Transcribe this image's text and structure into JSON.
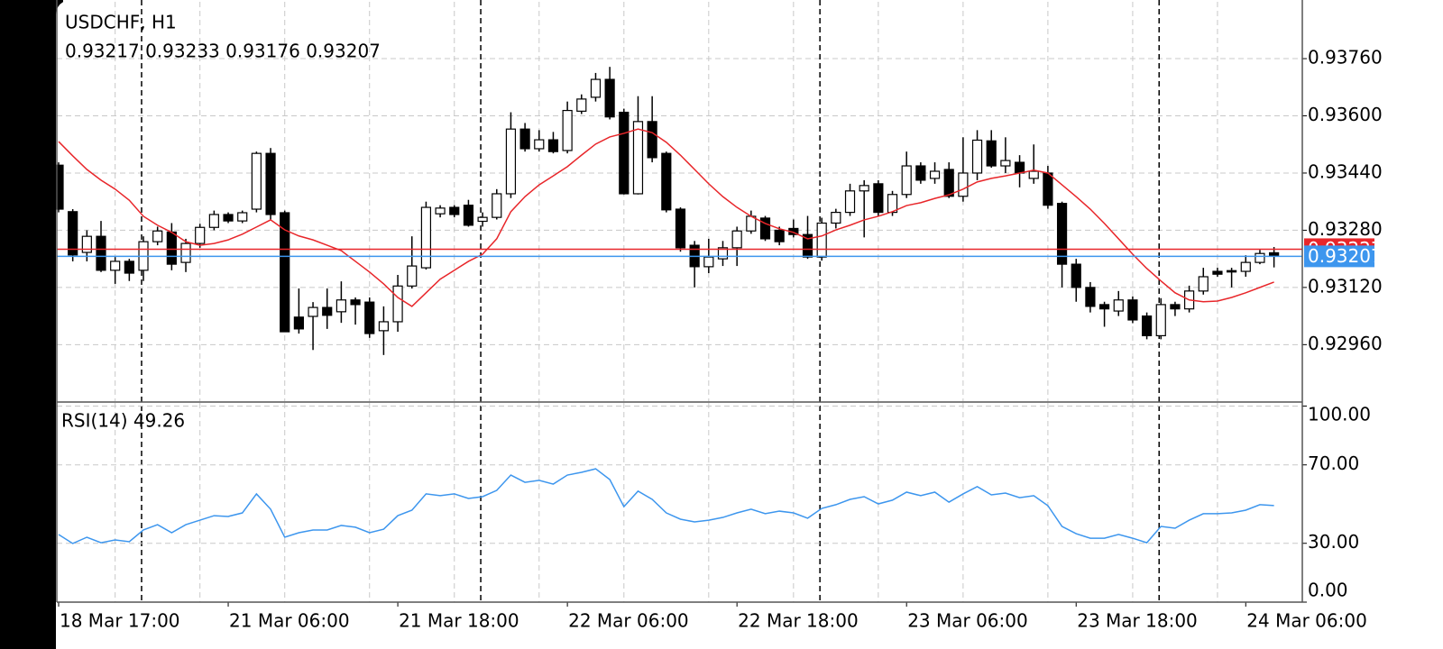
{
  "chart_data": [
    {
      "type": "candlestick",
      "title": "USDCHF, H1",
      "subtitle": "0.93217 0.93233 0.93176 0.93207",
      "categories": [
        "18 Mar 17:00",
        null,
        null,
        null,
        null,
        null,
        null,
        null,
        null,
        null,
        null,
        null,
        "21 Mar 06:00",
        null,
        null,
        null,
        null,
        null,
        null,
        null,
        null,
        null,
        null,
        null,
        "21 Mar 18:00",
        null,
        null,
        null,
        null,
        null,
        null,
        null,
        null,
        null,
        null,
        null,
        "22 Mar 06:00",
        null,
        null,
        null,
        null,
        null,
        null,
        null,
        null,
        null,
        null,
        null,
        "22 Mar 18:00",
        null,
        null,
        null,
        null,
        null,
        null,
        null,
        null,
        null,
        null,
        null,
        "23 Mar 06:00",
        null,
        null,
        null,
        null,
        null,
        null,
        null,
        null,
        null,
        null,
        null,
        "23 Mar 18:00",
        null,
        null,
        null,
        null,
        null,
        null,
        null,
        null,
        null,
        null,
        null,
        "24 Mar 06:00",
        null,
        null
      ],
      "open": [
        0.93462,
        0.93332,
        0.93218,
        0.93263,
        0.93168,
        0.93193,
        0.93168,
        0.93248,
        0.93275,
        0.9319,
        0.93243,
        0.93288,
        0.93324,
        0.93306,
        0.93339,
        0.93495,
        0.93329,
        0.93037,
        0.93039,
        0.93064,
        0.93052,
        0.93085,
        0.93079,
        0.92999,
        0.93024,
        0.93124,
        0.93175,
        0.93326,
        0.93344,
        0.9335,
        0.93305,
        0.93316,
        0.93382,
        0.93563,
        0.93508,
        0.93533,
        0.93503,
        0.93613,
        0.93652,
        0.93702,
        0.9361,
        0.93382,
        0.93584,
        0.93495,
        0.93339,
        0.93238,
        0.93178,
        0.932,
        0.93231,
        0.93278,
        0.93314,
        0.9328,
        0.93285,
        0.93268,
        0.93205,
        0.933,
        0.9333,
        0.9339,
        0.9341,
        0.9333,
        0.9338,
        0.9346,
        0.93425,
        0.9345,
        0.93375,
        0.9344,
        0.9353,
        0.9346,
        0.9347,
        0.93425,
        0.9344,
        0.93355,
        0.93185,
        0.9312,
        0.93072,
        0.93054,
        0.93085,
        0.9304,
        0.92985,
        0.93072,
        0.9306,
        0.9311,
        0.93165,
        0.93167,
        0.93165,
        0.9319,
        0.93217
      ],
      "high": [
        0.9347,
        0.93339,
        0.9328,
        0.93306,
        0.93205,
        0.932,
        0.93263,
        0.9329,
        0.933,
        0.93256,
        0.93298,
        0.93335,
        0.9333,
        0.93335,
        0.935,
        0.9351,
        0.93335,
        0.93117,
        0.93079,
        0.93117,
        0.93137,
        0.93092,
        0.93092,
        0.93067,
        0.93155,
        0.93263,
        0.9336,
        0.9335,
        0.9335,
        0.93365,
        0.9333,
        0.93395,
        0.9361,
        0.9358,
        0.9356,
        0.93555,
        0.9364,
        0.9366,
        0.9372,
        0.93737,
        0.9362,
        0.93655,
        0.93655,
        0.935,
        0.93344,
        0.9325,
        0.93256,
        0.9325,
        0.9329,
        0.93335,
        0.9332,
        0.9329,
        0.9331,
        0.9332,
        0.93315,
        0.9334,
        0.9341,
        0.9342,
        0.9342,
        0.9339,
        0.935,
        0.9347,
        0.9347,
        0.9347,
        0.9354,
        0.9356,
        0.9356,
        0.9354,
        0.9349,
        0.9352,
        0.9346,
        0.9336,
        0.932,
        0.93135,
        0.9308,
        0.9311,
        0.93095,
        0.9305,
        0.9309,
        0.9308,
        0.93125,
        0.93175,
        0.93175,
        0.93175,
        0.9321,
        0.93225,
        0.93233
      ],
      "low": [
        0.9333,
        0.93193,
        0.93193,
        0.93163,
        0.9313,
        0.93138,
        0.93138,
        0.93238,
        0.93168,
        0.93163,
        0.93231,
        0.9328,
        0.933,
        0.933,
        0.9333,
        0.9331,
        0.92996,
        0.92991,
        0.92945,
        0.93004,
        0.93021,
        0.93016,
        0.92979,
        0.92931,
        0.92996,
        0.93117,
        0.9317,
        0.93316,
        0.93316,
        0.9329,
        0.9329,
        0.9331,
        0.9337,
        0.935,
        0.935,
        0.93495,
        0.93495,
        0.93605,
        0.9364,
        0.9359,
        0.9338,
        0.9338,
        0.9347,
        0.9333,
        0.9322,
        0.9312,
        0.9316,
        0.9318,
        0.9318,
        0.9327,
        0.9325,
        0.93238,
        0.9326,
        0.932,
        0.93195,
        0.93285,
        0.9332,
        0.9326,
        0.9332,
        0.9332,
        0.9337,
        0.9341,
        0.9341,
        0.9337,
        0.9336,
        0.9342,
        0.93455,
        0.9344,
        0.934,
        0.9341,
        0.9334,
        0.9312,
        0.9308,
        0.9305,
        0.9301,
        0.9304,
        0.9302,
        0.92975,
        0.92975,
        0.9304,
        0.9305,
        0.931,
        0.9315,
        0.9312,
        0.9315,
        0.93185,
        0.93176
      ],
      "close": [
        0.93339,
        0.93211,
        0.93263,
        0.93168,
        0.93193,
        0.9316,
        0.93248,
        0.93278,
        0.93185,
        0.93243,
        0.93288,
        0.93324,
        0.93306,
        0.93329,
        0.93495,
        0.93324,
        0.92996,
        0.93004,
        0.93064,
        0.93042,
        0.93085,
        0.93072,
        0.92991,
        0.93024,
        0.93124,
        0.9318,
        0.93344,
        0.93342,
        0.93324,
        0.93294,
        0.93316,
        0.93382,
        0.93563,
        0.93508,
        0.93533,
        0.935,
        0.93615,
        0.93647,
        0.93702,
        0.93597,
        0.93382,
        0.93584,
        0.93483,
        0.93337,
        0.93231,
        0.93178,
        0.93205,
        0.93231,
        0.93278,
        0.93319,
        0.93256,
        0.93248,
        0.93268,
        0.93205,
        0.933,
        0.9333,
        0.9339,
        0.93405,
        0.9333,
        0.9338,
        0.9346,
        0.9342,
        0.93445,
        0.93375,
        0.9344,
        0.93532,
        0.9346,
        0.93475,
        0.9344,
        0.93445,
        0.9335,
        0.93185,
        0.9312,
        0.93067,
        0.9306,
        0.93085,
        0.93029,
        0.92985,
        0.93072,
        0.9306,
        0.9311,
        0.9315,
        0.93157,
        0.93164,
        0.9319,
        0.93215,
        0.93207
      ],
      "overlay_color": "#e8262a",
      "overlay_values": [
        0.93528,
        0.93488,
        0.9345,
        0.9342,
        0.93395,
        0.93364,
        0.93319,
        0.93294,
        0.93274,
        0.93248,
        0.93238,
        0.93243,
        0.93253,
        0.93269,
        0.93289,
        0.93309,
        0.93281,
        0.93264,
        0.93253,
        0.93238,
        0.93223,
        0.93193,
        0.93163,
        0.9313,
        0.93092,
        0.93067,
        0.93105,
        0.93143,
        0.93168,
        0.93193,
        0.93213,
        0.93256,
        0.93332,
        0.93374,
        0.93407,
        0.93432,
        0.93458,
        0.9349,
        0.93521,
        0.93541,
        0.93551,
        0.93563,
        0.93553,
        0.93526,
        0.9349,
        0.9345,
        0.9341,
        0.93374,
        0.93344,
        0.93319,
        0.93299,
        0.93284,
        0.93274,
        0.93256,
        0.93264,
        0.93281,
        0.93294,
        0.93309,
        0.93319,
        0.93332,
        0.93349,
        0.93357,
        0.93369,
        0.93379,
        0.93395,
        0.93415,
        0.93425,
        0.93432,
        0.9344,
        0.93448,
        0.9344,
        0.93407,
        0.93374,
        0.93339,
        0.93299,
        0.93256,
        0.93213,
        0.93173,
        0.93138,
        0.93105,
        0.93085,
        0.9308,
        0.93082,
        0.93092,
        0.93105,
        0.9312,
        0.93135
      ],
      "price_lines": [
        {
          "value": 0.93227,
          "color": "#e8262a"
        },
        {
          "value": 0.93207,
          "color": "#3d96ee"
        }
      ],
      "ylim": [
        0.92802,
        0.93919
      ],
      "yticks": [
        {
          "value": 0.9296,
          "label": "0.92960"
        },
        {
          "value": 0.9312,
          "label": "0.93120"
        },
        {
          "value": 0.9328,
          "label": "0.93280"
        },
        {
          "value": 0.9344,
          "label": "0.93440"
        },
        {
          "value": 0.936,
          "label": "0.93600"
        },
        {
          "value": 0.9376,
          "label": "0.93760"
        }
      ],
      "grid": true
    },
    {
      "type": "line",
      "title": "RSI(14) 49.26",
      "color": "#3d96ee",
      "values": [
        34.5,
        29.9,
        33.1,
        30.3,
        31.7,
        30.8,
        36.8,
        39.5,
        35.4,
        39.5,
        41.8,
        44.1,
        43.7,
        45.5,
        55.2,
        47.4,
        33.1,
        35.4,
        36.8,
        36.8,
        39.1,
        38.2,
        35.4,
        37.2,
        44.1,
        46.9,
        55.2,
        54.3,
        55.2,
        52.9,
        53.8,
        57.0,
        64.8,
        61.1,
        62.1,
        60.2,
        64.8,
        66.2,
        68.0,
        62.5,
        48.7,
        56.6,
        52.4,
        45.5,
        42.3,
        40.9,
        41.8,
        43.2,
        45.5,
        47.4,
        45.1,
        46.4,
        45.5,
        42.8,
        47.8,
        49.7,
        52.4,
        53.8,
        50.1,
        52.0,
        56.1,
        54.3,
        56.1,
        51.0,
        55.2,
        58.9,
        54.7,
        55.6,
        53.3,
        54.3,
        49.2,
        38.6,
        34.9,
        32.6,
        32.6,
        34.5,
        32.6,
        30.3,
        38.6,
        37.7,
        41.8,
        45.1,
        45.1,
        45.5,
        46.9,
        49.7,
        49.26
      ],
      "ylim": [
        0,
        101.6
      ],
      "yticks": [
        {
          "value": 0,
          "label": "0.00"
        },
        {
          "value": 30,
          "label": "30.00"
        },
        {
          "value": 70,
          "label": "70.00"
        },
        {
          "value": 100,
          "label": "100.00"
        }
      ],
      "grid": true
    }
  ]
}
